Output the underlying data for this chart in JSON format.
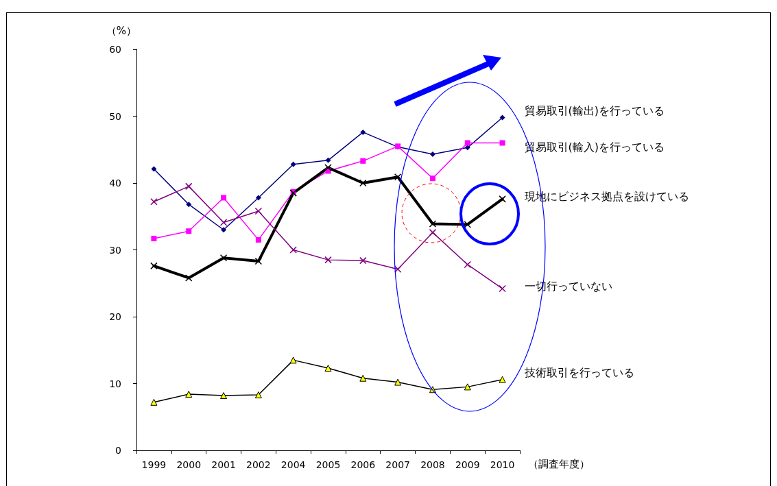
{
  "chart_data": {
    "type": "line",
    "ylabel": "（%）",
    "xlabel": "（調査年度）",
    "categories": [
      "1999",
      "2000",
      "2001",
      "2002",
      "2004",
      "2005",
      "2006",
      "2007",
      "2008",
      "2009",
      "2010"
    ],
    "ylim": [
      0,
      60
    ],
    "yticks": [
      0,
      10,
      20,
      30,
      40,
      50,
      60
    ],
    "grid": false,
    "legend": false,
    "series": [
      {
        "name": "貿易取引(輸出)を行っている",
        "color": "#000080",
        "marker": "diamond",
        "values": [
          42.1,
          36.8,
          33.0,
          37.8,
          42.8,
          43.4,
          47.6,
          45.4,
          44.3,
          45.3,
          49.8
        ]
      },
      {
        "name": "貿易取引(輸入)を行っている",
        "color": "#ff00ff",
        "marker": "square",
        "values": [
          31.7,
          32.8,
          37.8,
          31.5,
          38.7,
          41.8,
          43.3,
          45.5,
          40.7,
          46.0,
          46.0
        ]
      },
      {
        "name": "現地にビジネス拠点を設けている",
        "color": "#000000",
        "marker": "cross",
        "values": [
          27.6,
          25.8,
          28.8,
          28.3,
          38.5,
          42.3,
          40.0,
          40.9,
          33.9,
          33.8,
          37.6
        ]
      },
      {
        "name": "一切行っていない",
        "color": "#800080",
        "marker": "cross",
        "values": [
          37.2,
          39.5,
          34.1,
          35.8,
          30.0,
          28.5,
          28.4,
          27.1,
          32.6,
          27.8,
          24.2
        ]
      },
      {
        "name": "技術取引を行っている",
        "color": "#000000",
        "marker": "triangle",
        "values": [
          7.2,
          8.4,
          8.2,
          8.3,
          13.5,
          12.3,
          10.8,
          10.2,
          9.1,
          9.5,
          10.6
        ]
      }
    ]
  }
}
